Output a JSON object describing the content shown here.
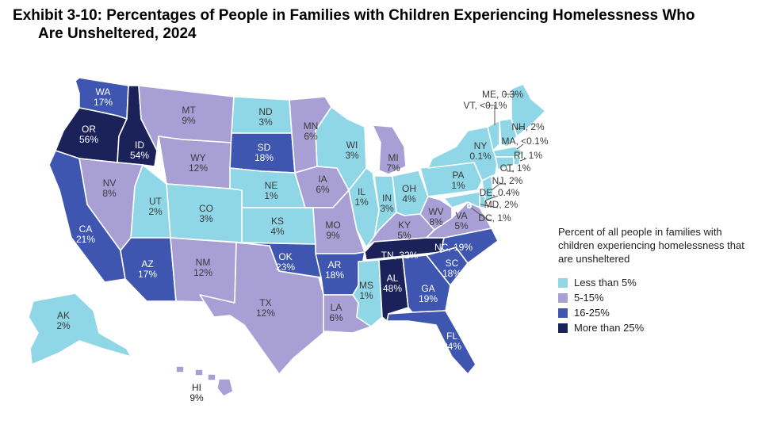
{
  "title": {
    "line1": "Exhibit 3-10: Percentages of People in Families with Children Experiencing Homelessness Who",
    "line2": "Are Unsheltered, 2024"
  },
  "legend": {
    "title": "Percent of all people in families with children experiencing homelessness that are unsheltered",
    "items": [
      {
        "label": "Less than 5%",
        "color": "#8fd6e6"
      },
      {
        "label": "5-15%",
        "color": "#a89fd4"
      },
      {
        "label": "16-25%",
        "color": "#3f56b0"
      },
      {
        "label": "More than 25%",
        "color": "#1b2259"
      }
    ]
  },
  "chart_data": {
    "type": "map",
    "title": "Percentages of People in Families with Children Experiencing Homelessness Who Are Unsheltered, 2024",
    "categories": [
      "Less than 5%",
      "5-15%",
      "16-25%",
      "More than 25%"
    ],
    "states": [
      {
        "code": "WA",
        "value": "17%",
        "category": 2
      },
      {
        "code": "OR",
        "value": "56%",
        "category": 3
      },
      {
        "code": "ID",
        "value": "54%",
        "category": 3
      },
      {
        "code": "MT",
        "value": "9%",
        "category": 1
      },
      {
        "code": "WY",
        "value": "12%",
        "category": 1
      },
      {
        "code": "ND",
        "value": "3%",
        "category": 0
      },
      {
        "code": "SD",
        "value": "18%",
        "category": 2
      },
      {
        "code": "NE",
        "value": "1%",
        "category": 0
      },
      {
        "code": "KS",
        "value": "4%",
        "category": 0
      },
      {
        "code": "CO",
        "value": "3%",
        "category": 0
      },
      {
        "code": "UT",
        "value": "2%",
        "category": 0
      },
      {
        "code": "NV",
        "value": "8%",
        "category": 1
      },
      {
        "code": "CA",
        "value": "21%",
        "category": 2
      },
      {
        "code": "AZ",
        "value": "17%",
        "category": 2
      },
      {
        "code": "NM",
        "value": "12%",
        "category": 1
      },
      {
        "code": "TX",
        "value": "12%",
        "category": 1
      },
      {
        "code": "OK",
        "value": "23%",
        "category": 2
      },
      {
        "code": "MN",
        "value": "6%",
        "category": 1
      },
      {
        "code": "IA",
        "value": "6%",
        "category": 1
      },
      {
        "code": "MO",
        "value": "9%",
        "category": 1
      },
      {
        "code": "AR",
        "value": "18%",
        "category": 2
      },
      {
        "code": "LA",
        "value": "6%",
        "category": 1
      },
      {
        "code": "WI",
        "value": "3%",
        "category": 0
      },
      {
        "code": "IL",
        "value": "1%",
        "category": 0
      },
      {
        "code": "MI",
        "value": "7%",
        "category": 1
      },
      {
        "code": "IN",
        "value": "3%",
        "category": 0
      },
      {
        "code": "OH",
        "value": "4%",
        "category": 0
      },
      {
        "code": "KY",
        "value": "5%",
        "category": 1
      },
      {
        "code": "TN",
        "value": "32%",
        "category": 3
      },
      {
        "code": "MS",
        "value": "1%",
        "category": 0
      },
      {
        "code": "AL",
        "value": "48%",
        "category": 3
      },
      {
        "code": "GA",
        "value": "19%",
        "category": 2
      },
      {
        "code": "FL",
        "value": "24%",
        "category": 2
      },
      {
        "code": "SC",
        "value": "18%",
        "category": 2
      },
      {
        "code": "NC",
        "value": "19%",
        "category": 2
      },
      {
        "code": "VA",
        "value": "5%",
        "category": 1
      },
      {
        "code": "WV",
        "value": "8%",
        "category": 1
      },
      {
        "code": "PA",
        "value": "1%",
        "category": 0
      },
      {
        "code": "NY",
        "value": "0.1%",
        "category": 0
      },
      {
        "code": "ME",
        "value": "0.3%",
        "category": 0
      },
      {
        "code": "VT",
        "value": "<0.1%",
        "category": 0
      },
      {
        "code": "NH",
        "value": "2%",
        "category": 0
      },
      {
        "code": "MA",
        "value": "<0.1%",
        "category": 0
      },
      {
        "code": "RI",
        "value": "1%",
        "category": 0
      },
      {
        "code": "CT",
        "value": "1%",
        "category": 0
      },
      {
        "code": "NJ",
        "value": "2%",
        "category": 0
      },
      {
        "code": "DE",
        "value": "0.4%",
        "category": 0
      },
      {
        "code": "MD",
        "value": "2%",
        "category": 0
      },
      {
        "code": "DC",
        "value": "1%",
        "category": 0
      },
      {
        "code": "AK",
        "value": "2%",
        "category": 0
      },
      {
        "code": "HI",
        "value": "9%",
        "category": 1
      }
    ]
  }
}
